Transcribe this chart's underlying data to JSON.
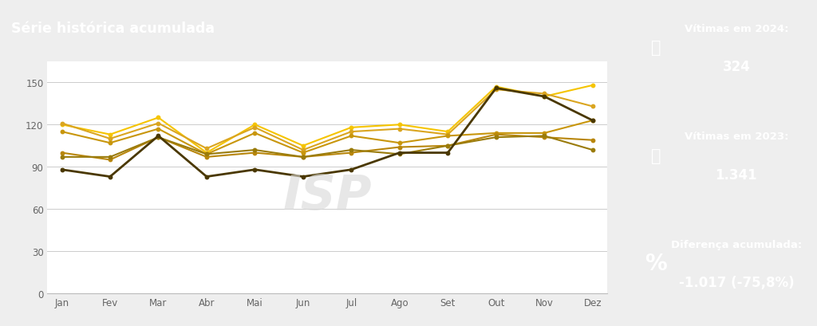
{
  "title": "Série histórica acumulada",
  "title_bg": "#F5C400",
  "title_color": "#ffffff",
  "chart_bg": "#ffffff",
  "right_panel_bg": "#eeeeee",
  "months": [
    "Jan",
    "Fev",
    "Mar",
    "Abr",
    "Mai",
    "Jun",
    "Jul",
    "Ago",
    "Set",
    "Out",
    "Nov",
    "Dez"
  ],
  "yticks": [
    0,
    30,
    60,
    90,
    120,
    150
  ],
  "ylim": [
    0,
    165
  ],
  "series": [
    {
      "values": [
        120,
        113,
        125,
        100,
        120,
        105,
        118,
        120,
        115,
        147,
        140,
        148
      ],
      "color": "#F5C400",
      "lw": 1.5
    },
    {
      "values": [
        121,
        110,
        121,
        103,
        118,
        102,
        115,
        117,
        113,
        145,
        142,
        133
      ],
      "color": "#DAA520",
      "lw": 1.5
    },
    {
      "values": [
        115,
        107,
        117,
        99,
        114,
        100,
        112,
        107,
        112,
        114,
        114,
        123
      ],
      "color": "#C8960C",
      "lw": 1.5
    },
    {
      "values": [
        100,
        95,
        111,
        97,
        100,
        97,
        100,
        104,
        105,
        113,
        111,
        109
      ],
      "color": "#B8860B",
      "lw": 1.5
    },
    {
      "values": [
        97,
        97,
        111,
        99,
        102,
        97,
        102,
        99,
        105,
        111,
        112,
        102
      ],
      "color": "#9A7B0A",
      "lw": 1.5
    },
    {
      "values": [
        88,
        83,
        112,
        83,
        88,
        83,
        88,
        100,
        100,
        146,
        140,
        123
      ],
      "color": "#4A3800",
      "lw": 2.0
    }
  ],
  "card1_title": "Vítimas em 2024:",
  "card1_value": "324",
  "card2_title": "Vítimas em 2023:",
  "card2_value": "1.341",
  "card3_title": "Diferença acumulada:",
  "card3_value": "-1.017 (-75,8%)",
  "card_bg": "#F5C400",
  "card_text_color": "#ffffff",
  "watermark": "ISP"
}
